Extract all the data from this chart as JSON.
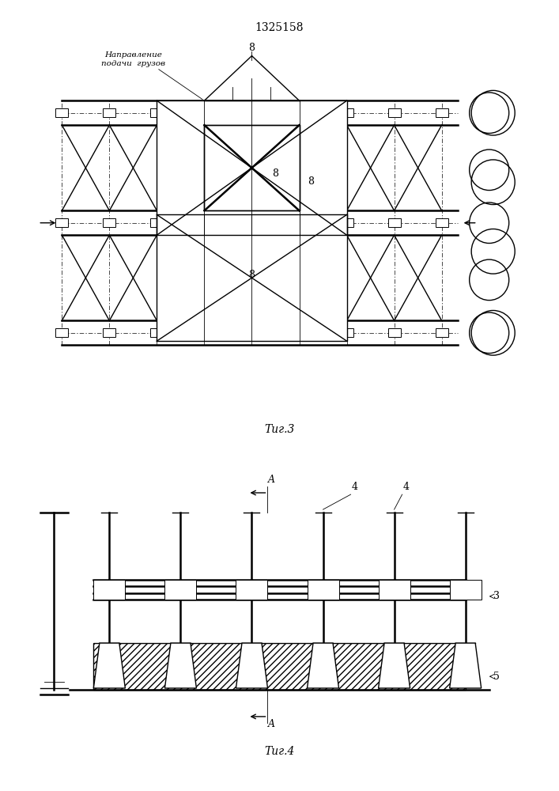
{
  "title": "1325158",
  "fig3_label": "Τиг.3",
  "fig4_label": "Τиг.4",
  "direction_label": "Направление\nподачи  грузов",
  "label_8a": "8",
  "label_8b": "8",
  "label_8c": "8",
  "label_8d": "8",
  "label_3": "3",
  "label_4a": "4",
  "label_4b": "4",
  "label_5": "5",
  "label_A": "A",
  "bg_color": "#ffffff",
  "line_color": "#000000"
}
